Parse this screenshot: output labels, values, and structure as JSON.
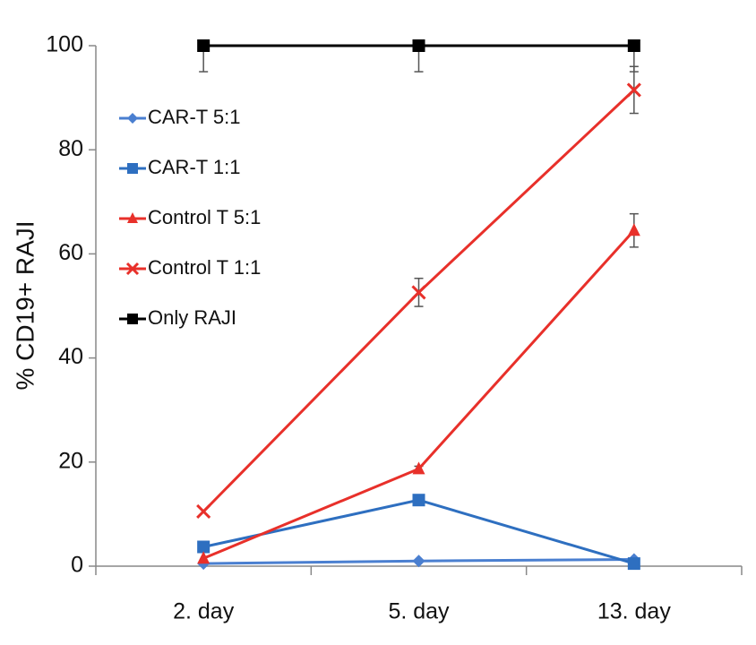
{
  "chart_data": {
    "type": "line",
    "y_label": "% CD19+ RAJI",
    "categories": [
      "2. day",
      "5. day",
      "13. day"
    ],
    "ylim": [
      0,
      100
    ],
    "yticks": [
      0,
      20,
      40,
      60,
      80,
      100
    ],
    "legend": "upper-left",
    "series": [
      {
        "name": "CAR-T 5:1",
        "color": "#4a7fd0",
        "marker": "diamond",
        "values": [
          0.5,
          1,
          1.3
        ]
      },
      {
        "name": "CAR-T 1:1",
        "color": "#2e6fc0",
        "marker": "square",
        "values": [
          3.7,
          12.7,
          0.5
        ]
      },
      {
        "name": "Control T 5:1",
        "color": "#e8302a",
        "marker": "triangle",
        "values": [
          1.5,
          18.7,
          64.5
        ],
        "errors": [
          0,
          0.5,
          3.2
        ]
      },
      {
        "name": "Control T 1:1",
        "color": "#e8302a",
        "marker": "x",
        "values": [
          10.5,
          52.6,
          91.5
        ],
        "errors": [
          0,
          2.7,
          4.5
        ]
      },
      {
        "name": "Only RAJI",
        "color": "#000000",
        "marker": "square",
        "values": [
          100,
          100,
          100
        ],
        "errors": [
          5,
          5,
          5
        ]
      }
    ]
  }
}
